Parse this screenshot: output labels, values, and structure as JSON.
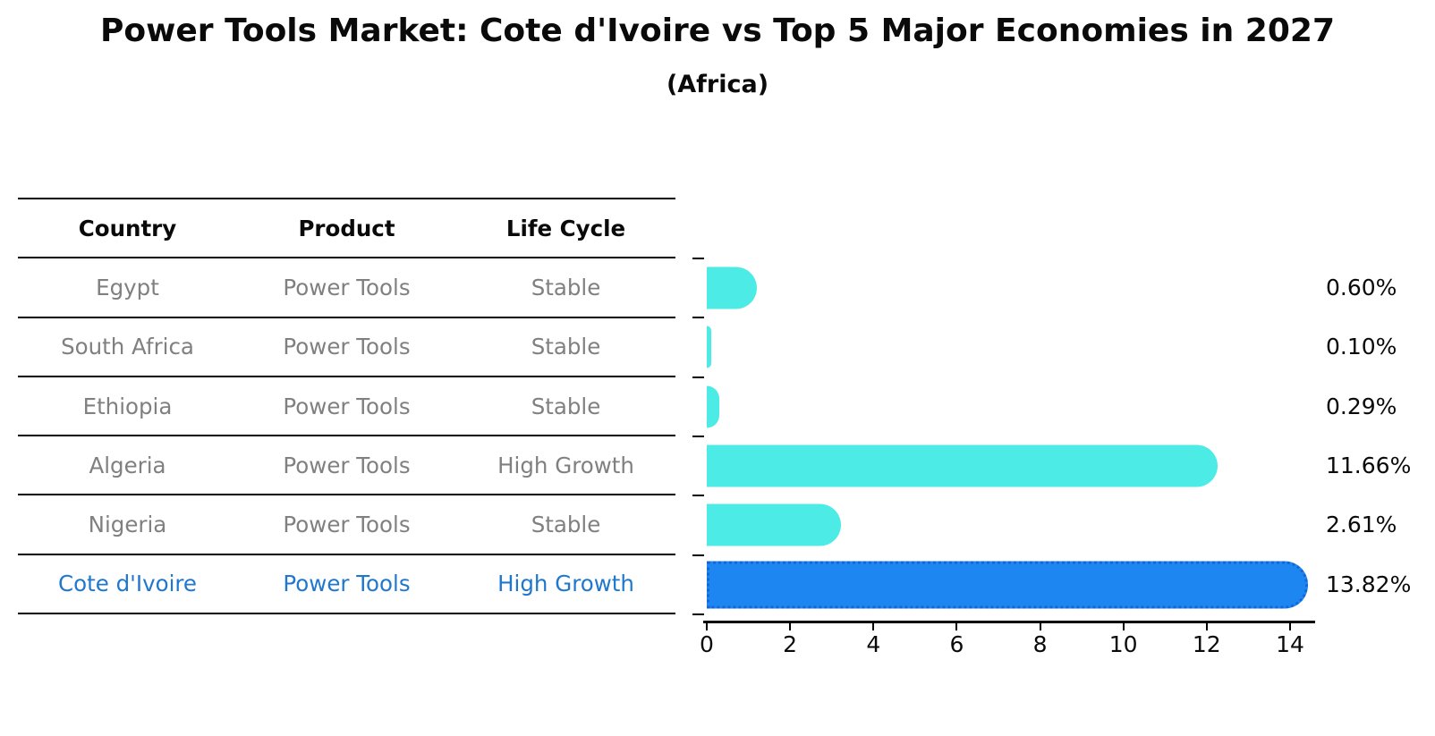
{
  "header": {
    "title": "Power Tools Market: Cote d'Ivoire vs Top 5 Major Economies in 2027",
    "subtitle": "(Africa)"
  },
  "table": {
    "headers": [
      "Country",
      "Product",
      "Life Cycle"
    ],
    "rows": [
      {
        "country": "Egypt",
        "product": "Power Tools",
        "life_cycle": "Stable",
        "highlight": false
      },
      {
        "country": "South Africa",
        "product": "Power Tools",
        "life_cycle": "Stable",
        "highlight": false
      },
      {
        "country": "Ethiopia",
        "product": "Power Tools",
        "life_cycle": "Stable",
        "highlight": false
      },
      {
        "country": "Algeria",
        "product": "Power Tools",
        "life_cycle": "High Growth",
        "highlight": false
      },
      {
        "country": "Nigeria",
        "product": "Power Tools",
        "life_cycle": "Stable",
        "highlight": false
      },
      {
        "country": "Cote d'Ivoire",
        "product": "Power Tools",
        "life_cycle": "High Growth",
        "highlight": true
      }
    ]
  },
  "chart_data": {
    "type": "bar",
    "orientation": "horizontal",
    "title": "Power Tools Market: Cote d'Ivoire vs Top 5 Major Economies in 2027",
    "subtitle": "(Africa)",
    "categories": [
      "Egypt",
      "South Africa",
      "Ethiopia",
      "Algeria",
      "Nigeria",
      "Cote d'Ivoire"
    ],
    "values": [
      0.6,
      0.1,
      0.29,
      11.66,
      2.61,
      13.82
    ],
    "value_labels": [
      "0.60%",
      "0.10%",
      "0.29%",
      "11.66%",
      "2.61%",
      "13.82%"
    ],
    "x_ticks": [
      0,
      2,
      4,
      6,
      8,
      10,
      12,
      14
    ],
    "xlim": [
      0,
      14.6
    ],
    "xlabel": "",
    "ylabel": "",
    "grid": false,
    "legend": false,
    "highlight_index": 5
  },
  "colors": {
    "bar_default": "#4DEBE6",
    "bar_highlight": "#1E86F0",
    "bar_highlight_border": "#1565D8",
    "highlight_text": "#1F77CE",
    "muted_text": "#808080",
    "axis": "#000000"
  }
}
